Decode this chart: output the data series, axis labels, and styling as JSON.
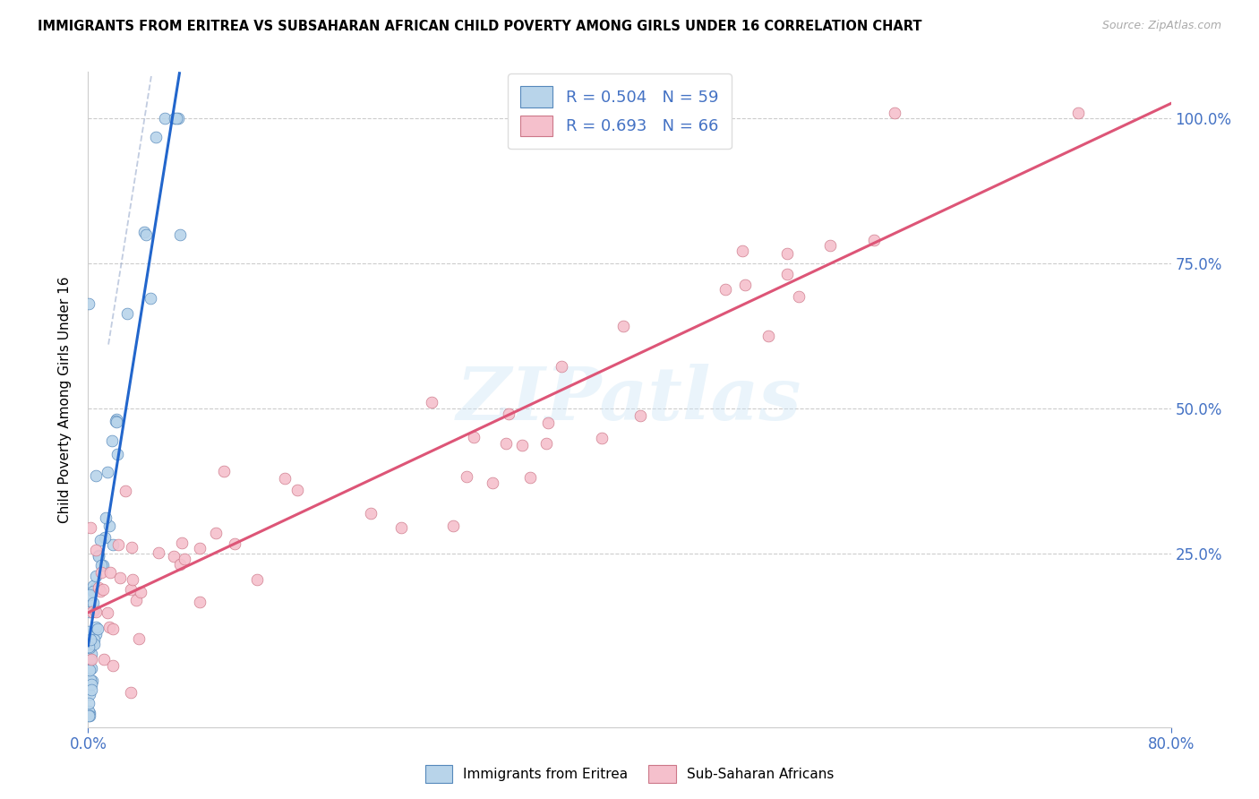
{
  "title": "IMMIGRANTS FROM ERITREA VS SUBSAHARAN AFRICAN CHILD POVERTY AMONG GIRLS UNDER 16 CORRELATION CHART",
  "source": "Source: ZipAtlas.com",
  "ylabel": "Child Poverty Among Girls Under 16",
  "ytick_vals": [
    0.25,
    0.5,
    0.75,
    1.0
  ],
  "ytick_labels": [
    "25.0%",
    "50.0%",
    "75.0%",
    "100.0%"
  ],
  "legend_R1": "R = 0.504",
  "legend_N1": "N = 59",
  "legend_R2": "R = 0.693",
  "legend_N2": "N = 66",
  "legend_label1": "Immigrants from Eritrea",
  "legend_label2": "Sub-Saharan Africans",
  "color_blue_fill": "#b8d4ea",
  "color_blue_edge": "#5588bb",
  "color_blue_line": "#2266cc",
  "color_pink_fill": "#f5c0cc",
  "color_pink_edge": "#cc7788",
  "color_pink_line": "#dd5577",
  "color_axis_text": "#4472c4",
  "color_grid": "#cccccc",
  "watermark": "ZIPatlas",
  "xmin": 0.0,
  "xmax": 0.8,
  "ymin": -0.05,
  "ymax": 1.08,
  "blue_slope": 18.0,
  "blue_intercept": 0.05,
  "pink_slope": 0.95,
  "pink_intercept": 0.16
}
